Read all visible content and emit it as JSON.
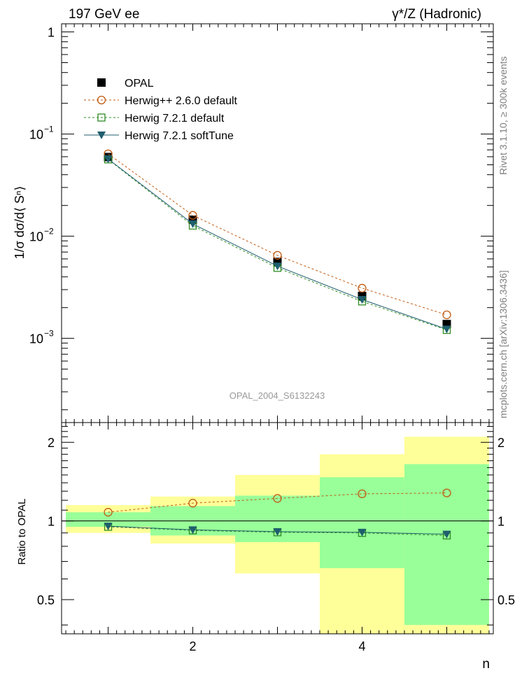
{
  "header": {
    "left": "197 GeV ee",
    "right": "γ*/Z (Hadronic)"
  },
  "side_labels": {
    "rivet": "Rivet 3.1.10, ≥ 300k events",
    "mcplots": "mcplots.cern.ch [arXiv:1306.3436]"
  },
  "watermark": "OPAL_2004_S6132243",
  "chart_data": [
    {
      "type": "line",
      "panel": "main",
      "ylabel": "1/σ dσ/d⟨ Sⁿ⟩",
      "yscale": "log",
      "ylim": [
        0.00015,
        1.2
      ],
      "xlim": [
        0.45,
        5.55
      ],
      "y_ticks": [
        {
          "value": 1,
          "label": "1"
        },
        {
          "value": 0.1,
          "label": "10",
          "exp": "−1"
        },
        {
          "value": 0.01,
          "label": "10",
          "exp": "−2"
        },
        {
          "value": 0.001,
          "label": "10",
          "exp": "−3"
        }
      ],
      "x": [
        1,
        2,
        3,
        4,
        5
      ],
      "series": [
        {
          "name": "OPAL",
          "marker": "filled-square",
          "color": "#000000",
          "values": [
            0.0595,
            0.0145,
            0.0056,
            0.0026,
            0.00138
          ]
        },
        {
          "name": "Herwig++ 2.6.0 default",
          "marker": "open-circle",
          "color": "#c05a10",
          "dash": "3,3",
          "values": [
            0.064,
            0.016,
            0.0065,
            0.0031,
            0.0017
          ]
        },
        {
          "name": "Herwig 7.2.1 default",
          "marker": "open-square",
          "color": "#2e8b22",
          "dash": "3,3",
          "values": [
            0.0565,
            0.0127,
            0.0049,
            0.0023,
            0.00121
          ]
        },
        {
          "name": "Herwig 7.2.1 softTune",
          "marker": "filled-triangle-down",
          "color": "#1f5e6e",
          "values": [
            0.057,
            0.0132,
            0.0051,
            0.0024,
            0.00123
          ]
        }
      ]
    },
    {
      "type": "line",
      "panel": "ratio",
      "ylabel": "Ratio to OPAL",
      "xlabel": "n",
      "yscale": "log",
      "ylim": [
        0.37,
        2.38
      ],
      "xlim": [
        0.45,
        5.55
      ],
      "y_ticks": [
        {
          "value": 2,
          "label": "2"
        },
        {
          "value": 1,
          "label": "1"
        },
        {
          "value": 0.5,
          "label": "0.5"
        }
      ],
      "x_ticks": [
        {
          "value": 2,
          "label": "2"
        },
        {
          "value": 4,
          "label": "4"
        }
      ],
      "bands": [
        {
          "x": [
            0.5,
            1.5
          ],
          "yellow": [
            0.9,
            1.15
          ],
          "green": [
            0.95,
            1.08
          ]
        },
        {
          "x": [
            1.5,
            2.5
          ],
          "yellow": [
            0.82,
            1.24
          ],
          "green": [
            0.88,
            1.14
          ]
        },
        {
          "x": [
            2.5,
            3.5
          ],
          "yellow": [
            0.63,
            1.5
          ],
          "green": [
            0.83,
            1.25
          ]
        },
        {
          "x": [
            3.5,
            4.5
          ],
          "yellow": [
            0.35,
            1.8
          ],
          "green": [
            0.66,
            1.47
          ]
        },
        {
          "x": [
            4.5,
            5.5
          ],
          "yellow": [
            0.35,
            2.1
          ],
          "green": [
            0.4,
            1.65
          ]
        }
      ],
      "x": [
        1,
        2,
        3,
        4,
        5
      ],
      "series": [
        {
          "name": "Herwig++ 2.6.0 default",
          "marker": "open-circle",
          "color": "#c05a10",
          "dash": "3,3",
          "values": [
            1.08,
            1.17,
            1.22,
            1.27,
            1.28
          ]
        },
        {
          "name": "Herwig 7.2.1 default",
          "marker": "open-square",
          "color": "#2e8b22",
          "dash": "3,3",
          "values": [
            0.95,
            0.92,
            0.905,
            0.9,
            0.88
          ]
        },
        {
          "name": "Herwig 7.2.1 softTune",
          "marker": "filled-triangle-down",
          "color": "#1f5e6e",
          "values": [
            0.955,
            0.925,
            0.91,
            0.905,
            0.89
          ]
        }
      ]
    }
  ]
}
